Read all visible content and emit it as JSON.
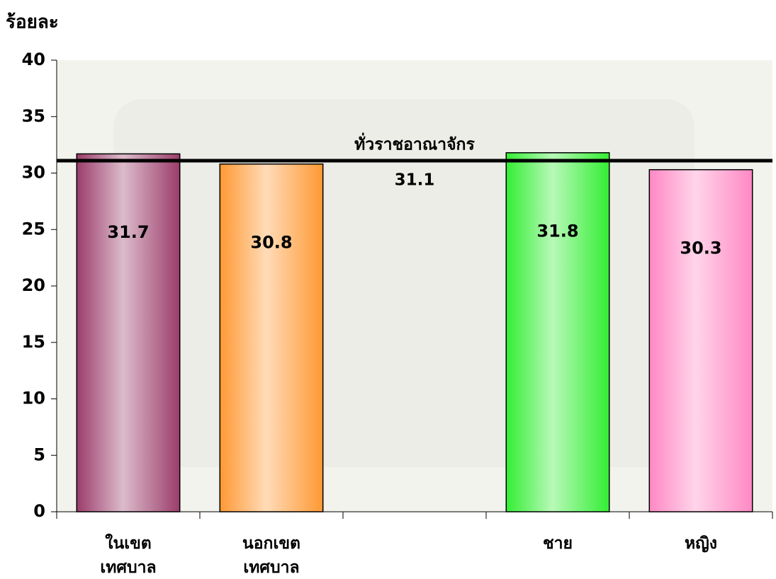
{
  "chart_data": {
    "type": "bar",
    "y_label": "ร้อยละ",
    "categories": [
      "ในเขต เทศบาล",
      "นอกเขต เทศบาล",
      null,
      "ชาย",
      "หญิง"
    ],
    "values": [
      31.7,
      30.8,
      null,
      31.8,
      30.3
    ],
    "colors": [
      "#9b3d6b",
      "#ff9933",
      null,
      "#33ee33",
      "#ff88c4"
    ],
    "ylim": [
      0,
      40
    ],
    "yticks": [
      0,
      5,
      10,
      15,
      20,
      25,
      30,
      35,
      40
    ],
    "reference_line": {
      "label": "ทั่วราชอาณาจักร",
      "value": 31.1,
      "color": "#000000"
    }
  }
}
